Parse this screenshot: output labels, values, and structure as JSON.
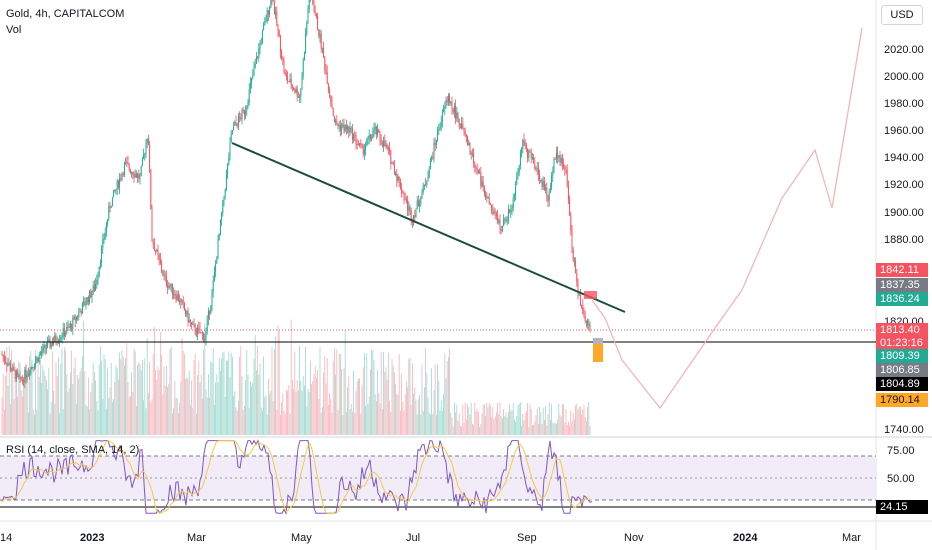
{
  "header": {
    "symbol_line": "Gold, 4h, CAPITALCOM",
    "volume_label": "Vol",
    "currency": "USD"
  },
  "price_axis": {
    "ticks": [
      "2020.00",
      "2000.00",
      "1980.00",
      "1960.00",
      "1940.00",
      "1920.00",
      "1900.00",
      "1880.00",
      "1820.00",
      "1740.00"
    ]
  },
  "price_tags": {
    "p1842": "1842.11",
    "p1837": "1837.35",
    "p1836": "1836.24",
    "p1813": "1813.40",
    "countdown": "01:23:16",
    "p1809": "1809.39",
    "p1806": "1806.85",
    "p1804": "1804.89",
    "p1790": "1790.14"
  },
  "rsi": {
    "label": "RSI (14, close, SMA, 14, 2)",
    "ticks": [
      "75.00",
      "50.00"
    ],
    "current": "24.15"
  },
  "time_axis": {
    "labels": [
      "14",
      "2023",
      "Mar",
      "May",
      "Jul",
      "Sep",
      "Nov",
      "2024",
      "Mar"
    ]
  },
  "colors": {
    "up": "#22ab94",
    "down": "#f7525f",
    "trendline": "#1b4d3e",
    "rsi_line": "#7e57c2",
    "rsi_ma": "#f7c948",
    "rsi_band": "#ede7f6",
    "projection": "#f7b0b5"
  },
  "chart_data": {
    "type": "candlestick",
    "symbol": "Gold",
    "timeframe": "4h",
    "y_axis": {
      "min": 1740,
      "max": 2030
    },
    "key_points": [
      {
        "date": "2022-12",
        "price": 1800
      },
      {
        "date": "2023-02-03",
        "price": 1960
      },
      {
        "date": "2023-02-28",
        "price": 1805
      },
      {
        "date": "2023-05-04",
        "price": 2065
      },
      {
        "date": "2023-06-29",
        "price": 1893
      },
      {
        "date": "2023-07-20",
        "price": 1987
      },
      {
        "date": "2023-08-21",
        "price": 1885
      },
      {
        "date": "2023-09-01",
        "price": 1952
      },
      {
        "date": "2023-09-20",
        "price": 1947
      },
      {
        "date": "2023-10-06",
        "price": 1810
      }
    ],
    "current_price": 1813.4,
    "rsi": {
      "current": 24.15,
      "levels": [
        70,
        50,
        30
      ]
    },
    "projection": [
      {
        "date": "2023-10-20",
        "price": 1800
      },
      {
        "date": "2023-11-10",
        "price": 1765
      },
      {
        "date": "2023-12-01",
        "price": 1830
      },
      {
        "date": "2023-12-20",
        "price": 1820
      },
      {
        "date": "2024-01-05",
        "price": 1870
      },
      {
        "date": "2024-01-25",
        "price": 1915
      },
      {
        "date": "2024-02-10",
        "price": 1945
      },
      {
        "date": "2024-02-20",
        "price": 1905
      },
      {
        "date": "2024-03-10",
        "price": 2040
      }
    ]
  }
}
